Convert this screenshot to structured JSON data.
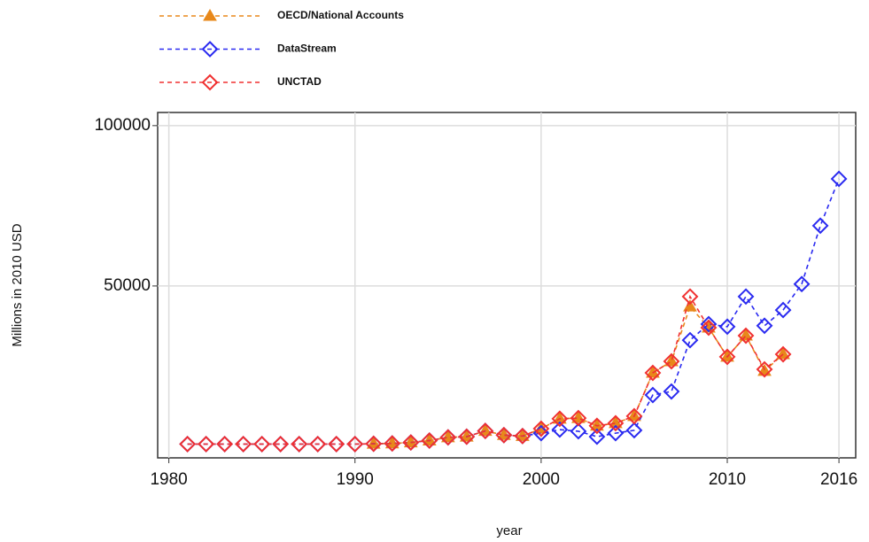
{
  "chart_data": {
    "type": "line",
    "y_label": "Millions in 2010 USD",
    "x_label": "year",
    "x": [
      1981,
      1982,
      1983,
      1984,
      1985,
      1986,
      1987,
      1988,
      1989,
      1990,
      1991,
      1992,
      1993,
      1994,
      1995,
      1996,
      1997,
      1998,
      1999,
      2000,
      2001,
      2002,
      2003,
      2004,
      2005,
      2006,
      2007,
      2008,
      2009,
      2010,
      2011,
      2012,
      2013,
      2014,
      2015,
      2016
    ],
    "series": [
      {
        "name": "OECD/National Accounts",
        "color": "#e8881a",
        "marker": "triangle",
        "values": [
          null,
          null,
          null,
          null,
          null,
          null,
          null,
          null,
          null,
          null,
          800,
          900,
          1200,
          1800,
          2800,
          3000,
          4800,
          3500,
          3200,
          5500,
          8600,
          8800,
          6400,
          7200,
          9400,
          22900,
          26500,
          43600,
          37000,
          27900,
          34500,
          23500,
          28700,
          null,
          null,
          null
        ]
      },
      {
        "name": "DataStream",
        "color": "#2a2af0",
        "marker": "diamond",
        "values": [
          700,
          700,
          700,
          700,
          700,
          700,
          700,
          700,
          700,
          700,
          800,
          900,
          1200,
          1800,
          2800,
          3000,
          4800,
          3500,
          3200,
          4100,
          5200,
          4700,
          3000,
          4100,
          5000,
          16000,
          17100,
          33100,
          38100,
          37300,
          46700,
          37600,
          42500,
          50600,
          68800,
          83400
        ]
      },
      {
        "name": "UNCTAD",
        "color": "#f03030",
        "marker": "diamond",
        "values": [
          700,
          700,
          700,
          700,
          700,
          700,
          700,
          700,
          700,
          700,
          800,
          900,
          1200,
          1800,
          2800,
          3000,
          4800,
          3500,
          3200,
          5500,
          8600,
          8800,
          6400,
          7200,
          9400,
          22900,
          26500,
          46700,
          37000,
          27900,
          34500,
          24000,
          28700,
          null,
          null,
          null
        ]
      }
    ],
    "xlim": [
      1979.4,
      2016.9
    ],
    "xticks": [
      1980,
      1990,
      2000,
      2010,
      2016
    ],
    "ylim": [
      -3600,
      104100
    ],
    "yticks": [
      50000,
      100000
    ],
    "grid": true,
    "legend": "top-left",
    "dashed": true
  }
}
